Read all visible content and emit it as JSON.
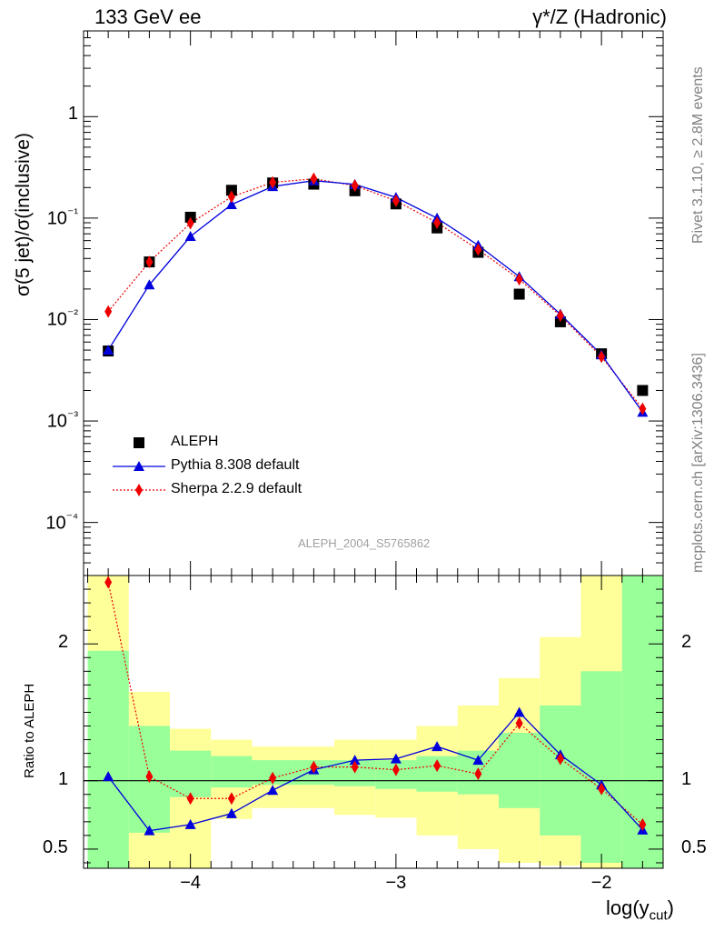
{
  "header": {
    "energy": "133 GeV ee",
    "process": "γ*/Z (Hadronic)",
    "rivet": "Rivet 3.1.10, ≥ 2.8M events",
    "source": "mcplots.cern.ch [arXiv:1306.3436]",
    "analysis": "ALEPH_2004_S5765862"
  },
  "colors": {
    "data": "#000000",
    "pythia": "#0000dd",
    "sherpa": "#ee0000",
    "band_green": "#99ff99",
    "band_yellow": "#ffff99"
  },
  "chart_data": [
    {
      "type": "scatter",
      "panel": "main",
      "ylabel": "σ(5 jet)/σ(inclusive)",
      "yscale": "log",
      "ylim": [
        3e-05,
        7
      ],
      "xlim": [
        -4.52,
        -1.7
      ],
      "ytick_labels": [
        "10⁻⁴",
        "10⁻³",
        "10⁻²",
        "10⁻¹",
        "1"
      ],
      "x": [
        -4.4,
        -4.2,
        -4.0,
        -3.8,
        -3.6,
        -3.4,
        -3.2,
        -3.0,
        -2.8,
        -2.6,
        -2.4,
        -2.2,
        -2.0,
        -1.8
      ],
      "series": [
        {
          "name": "ALEPH",
          "marker": "square",
          "values": [
            0.0049,
            0.037,
            0.102,
            0.188,
            0.222,
            0.216,
            0.186,
            0.138,
            0.08,
            0.046,
            0.0178,
            0.0095,
            0.0046,
            0.002
          ]
        },
        {
          "name": "Pythia 8.308 default",
          "marker": "triangle",
          "line": "solid",
          "values": [
            0.005,
            0.022,
            0.066,
            0.136,
            0.205,
            0.234,
            0.215,
            0.16,
            0.1,
            0.054,
            0.0265,
            0.0113,
            0.0045,
            0.00122
          ]
        },
        {
          "name": "Sherpa 2.2.9 default",
          "marker": "diamond",
          "line": "dotted",
          "values": [
            0.012,
            0.037,
            0.089,
            0.162,
            0.225,
            0.244,
            0.209,
            0.148,
            0.09,
            0.049,
            0.025,
            0.0109,
            0.0043,
            0.00132
          ]
        }
      ],
      "legend_position": "bottom-left"
    },
    {
      "type": "line",
      "panel": "ratio",
      "ylabel": "Ratio to ALEPH",
      "ylim": [
        0.36,
        2.5
      ],
      "ytick_labels": [
        "0.5",
        "1",
        "2"
      ],
      "xticks": [
        -4,
        -3,
        -2
      ],
      "xtick_labels": [
        "−4",
        "−3",
        "−2"
      ],
      "xlabel": "log(y",
      "xlabel_sub": "cut",
      "xlabel_end": ")",
      "bin_edges": [
        -4.5,
        -4.3,
        -4.1,
        -3.9,
        -3.7,
        -3.5,
        -3.3,
        -3.1,
        -2.9,
        -2.7,
        -2.5,
        -2.3,
        -2.1,
        -1.9,
        -1.7
      ],
      "band_green": [
        [
          0.36,
          1.95
        ],
        [
          0.62,
          1.4
        ],
        [
          0.88,
          1.22
        ],
        [
          0.95,
          1.18
        ],
        [
          0.97,
          1.15
        ],
        [
          0.97,
          1.15
        ],
        [
          0.96,
          1.15
        ],
        [
          0.94,
          1.15
        ],
        [
          0.92,
          1.18
        ],
        [
          0.9,
          1.22
        ],
        [
          0.8,
          1.35
        ],
        [
          0.6,
          1.55
        ],
        [
          0.4,
          1.8
        ],
        [
          0.36,
          2.5
        ]
      ],
      "band_yellow": [
        [
          0.36,
          2.5
        ],
        [
          0.36,
          1.65
        ],
        [
          0.36,
          1.38
        ],
        [
          0.72,
          1.3
        ],
        [
          0.8,
          1.25
        ],
        [
          0.8,
          1.25
        ],
        [
          0.75,
          1.3
        ],
        [
          0.73,
          1.3
        ],
        [
          0.6,
          1.4
        ],
        [
          0.5,
          1.55
        ],
        [
          0.4,
          1.75
        ],
        [
          0.38,
          2.05
        ],
        [
          0.36,
          2.5
        ],
        [
          0.36,
          2.5
        ]
      ],
      "series": [
        {
          "name": "Pythia 8.308 default",
          "values": [
            1.03,
            0.635,
            0.68,
            0.76,
            0.93,
            1.08,
            1.15,
            1.16,
            1.25,
            1.15,
            1.5,
            1.19,
            0.97,
            0.64
          ]
        },
        {
          "name": "Sherpa 2.2.9 default",
          "values": [
            2.45,
            1.03,
            0.87,
            0.87,
            1.02,
            1.1,
            1.1,
            1.08,
            1.11,
            1.05,
            1.42,
            1.16,
            0.94,
            0.68
          ]
        }
      ],
      "reference_line": 1
    }
  ]
}
